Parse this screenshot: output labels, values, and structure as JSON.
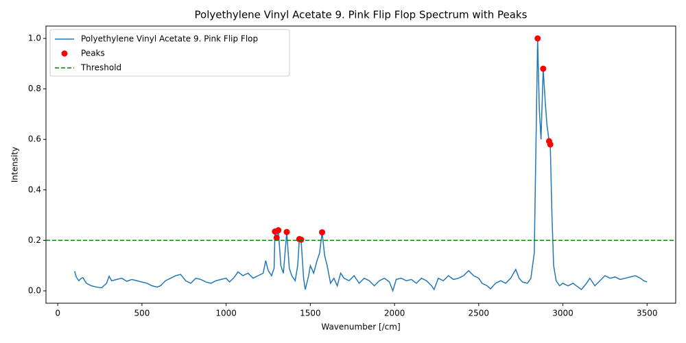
{
  "chart_data": {
    "type": "line",
    "title": "Polyethylene Vinyl Acetate 9. Pink Flip Flop Spectrum with Peaks",
    "x_label": "Wavenumber [/cm]",
    "y_label": "Intensity",
    "xlim": [
      -70,
      3670
    ],
    "ylim": [
      -0.049,
      1.049
    ],
    "xticks": [
      0,
      500,
      1000,
      1500,
      2000,
      2500,
      3000,
      3500
    ],
    "yticks": [
      {
        "value": 0,
        "label": "0.0"
      },
      0.2,
      0.4,
      0.6,
      0.8,
      {
        "value": 1,
        "label": "1.0"
      }
    ],
    "legend": "upper left",
    "series": [
      {
        "name": "Polyethylene Vinyl Acetate 9. Pink Flip Flop",
        "type": "line",
        "color": "#1f77b4",
        "x": [
          100,
          110,
          125,
          140,
          150,
          170,
          200,
          230,
          260,
          290,
          305,
          320,
          350,
          380,
          410,
          440,
          470,
          500,
          530,
          560,
          590,
          610,
          640,
          670,
          700,
          730,
          760,
          790,
          820,
          850,
          880,
          910,
          940,
          970,
          1000,
          1020,
          1050,
          1070,
          1100,
          1130,
          1160,
          1190,
          1220,
          1235,
          1250,
          1270,
          1285,
          1290,
          1300,
          1310,
          1325,
          1340,
          1360,
          1375,
          1390,
          1410,
          1425,
          1435,
          1445,
          1460,
          1470,
          1490,
          1500,
          1520,
          1540,
          1555,
          1570,
          1585,
          1600,
          1620,
          1640,
          1660,
          1680,
          1700,
          1730,
          1760,
          1790,
          1820,
          1850,
          1880,
          1910,
          1940,
          1970,
          1990,
          2010,
          2040,
          2070,
          2100,
          2130,
          2160,
          2190,
          2220,
          2235,
          2260,
          2290,
          2320,
          2350,
          2380,
          2410,
          2440,
          2470,
          2500,
          2520,
          2550,
          2570,
          2600,
          2630,
          2660,
          2690,
          2720,
          2740,
          2760,
          2790,
          2810,
          2830,
          2850,
          2860,
          2870,
          2883,
          2895,
          2905,
          2918,
          2925,
          2935,
          2945,
          2960,
          2980,
          3000,
          3030,
          3060,
          3090,
          3110,
          3140,
          3160,
          3190,
          3220,
          3250,
          3280,
          3310,
          3340,
          3370,
          3400,
          3430,
          3460,
          3480,
          3500
        ],
        "values": [
          0.078,
          0.055,
          0.04,
          0.05,
          0.052,
          0.03,
          0.02,
          0.015,
          0.012,
          0.03,
          0.058,
          0.04,
          0.045,
          0.05,
          0.038,
          0.045,
          0.04,
          0.035,
          0.03,
          0.02,
          0.015,
          0.02,
          0.04,
          0.05,
          0.06,
          0.065,
          0.04,
          0.03,
          0.05,
          0.045,
          0.035,
          0.03,
          0.04,
          0.045,
          0.05,
          0.035,
          0.055,
          0.075,
          0.06,
          0.07,
          0.05,
          0.06,
          0.07,
          0.12,
          0.08,
          0.06,
          0.09,
          0.235,
          0.21,
          0.24,
          0.1,
          0.07,
          0.233,
          0.09,
          0.06,
          0.04,
          0.1,
          0.205,
          0.203,
          0.05,
          0.005,
          0.06,
          0.1,
          0.07,
          0.12,
          0.15,
          0.232,
          0.14,
          0.1,
          0.03,
          0.05,
          0.02,
          0.07,
          0.05,
          0.04,
          0.06,
          0.03,
          0.05,
          0.04,
          0.02,
          0.04,
          0.05,
          0.035,
          0.0,
          0.045,
          0.05,
          0.04,
          0.045,
          0.03,
          0.05,
          0.04,
          0.02,
          0.005,
          0.05,
          0.04,
          0.06,
          0.045,
          0.05,
          0.06,
          0.08,
          0.06,
          0.05,
          0.03,
          0.02,
          0.008,
          0.03,
          0.04,
          0.03,
          0.05,
          0.085,
          0.05,
          0.035,
          0.03,
          0.05,
          0.15,
          1.0,
          0.72,
          0.6,
          0.88,
          0.75,
          0.66,
          0.593,
          0.58,
          0.3,
          0.1,
          0.04,
          0.02,
          0.03,
          0.02,
          0.03,
          0.015,
          0.005,
          0.03,
          0.05,
          0.02,
          0.04,
          0.06,
          0.05,
          0.055,
          0.045,
          0.05,
          0.055,
          0.06,
          0.05,
          0.04,
          0.035
        ]
      },
      {
        "name": "Peaks",
        "type": "scatter",
        "color": "#ff0000",
        "x": [
          1290,
          1300,
          1310,
          1360,
          1435,
          1445,
          1570,
          2850,
          2883,
          2918,
          2925
        ],
        "values": [
          0.235,
          0.21,
          0.24,
          0.233,
          0.205,
          0.203,
          0.232,
          1.0,
          0.88,
          0.593,
          0.58
        ]
      },
      {
        "name": "Threshold",
        "type": "hline",
        "color": "#008000",
        "dashed": true,
        "y": 0.2
      }
    ]
  }
}
